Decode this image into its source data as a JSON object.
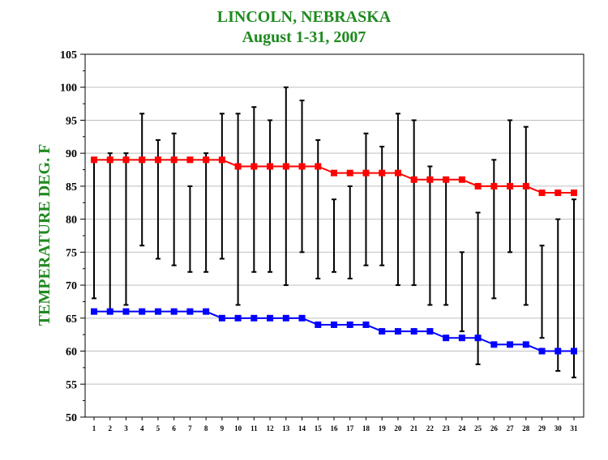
{
  "chart_data": {
    "type": "line",
    "title": "LINCOLN, NEBRASKA",
    "subtitle": "August 1-31,  2007",
    "xlabel": "",
    "ylabel": "TEMPERATURE DEG. F",
    "ylim": [
      50,
      105
    ],
    "yticks": [
      50,
      55,
      60,
      65,
      70,
      75,
      80,
      85,
      90,
      95,
      100,
      105
    ],
    "grid": "horizontal",
    "legend": "none",
    "categories": [
      "1",
      "2",
      "3",
      "4",
      "5",
      "6",
      "7",
      "8",
      "9",
      "10",
      "11",
      "12",
      "13",
      "14",
      "15",
      "16",
      "17",
      "18",
      "19",
      "20",
      "21",
      "22",
      "23",
      "24",
      "25",
      "26",
      "27",
      "28",
      "29",
      "30",
      "31"
    ],
    "series": [
      {
        "color": "#ff0000",
        "values": [
          89,
          89,
          89,
          89,
          89,
          89,
          89,
          89,
          89,
          88,
          88,
          88,
          88,
          88,
          88,
          87,
          87,
          87,
          87,
          87,
          86,
          86,
          86,
          86,
          85,
          85,
          85,
          85,
          84,
          84,
          84
        ]
      },
      {
        "color": "#0000ff",
        "values": [
          66,
          66,
          66,
          66,
          66,
          66,
          66,
          66,
          65,
          65,
          65,
          65,
          65,
          65,
          64,
          64,
          64,
          64,
          63,
          63,
          63,
          63,
          62,
          62,
          62,
          61,
          61,
          61,
          60,
          60,
          60
        ]
      }
    ],
    "ranges": {
      "color": "#000000",
      "high": [
        89,
        90,
        90,
        96,
        92,
        93,
        85,
        90,
        96,
        96,
        97,
        95,
        100,
        98,
        92,
        83,
        85,
        93,
        91,
        96,
        95,
        88,
        86,
        75,
        81,
        89,
        95,
        94,
        76,
        80,
        83
      ],
      "low": [
        68,
        66,
        67,
        76,
        74,
        73,
        72,
        72,
        74,
        67,
        72,
        72,
        70,
        75,
        71,
        72,
        71,
        73,
        73,
        70,
        70,
        67,
        67,
        63,
        58,
        68,
        75,
        67,
        62,
        57,
        56
      ]
    }
  },
  "colors": {
    "title": "#1f8a1f",
    "grid": "#bfbfbf",
    "axis": "#000000"
  }
}
